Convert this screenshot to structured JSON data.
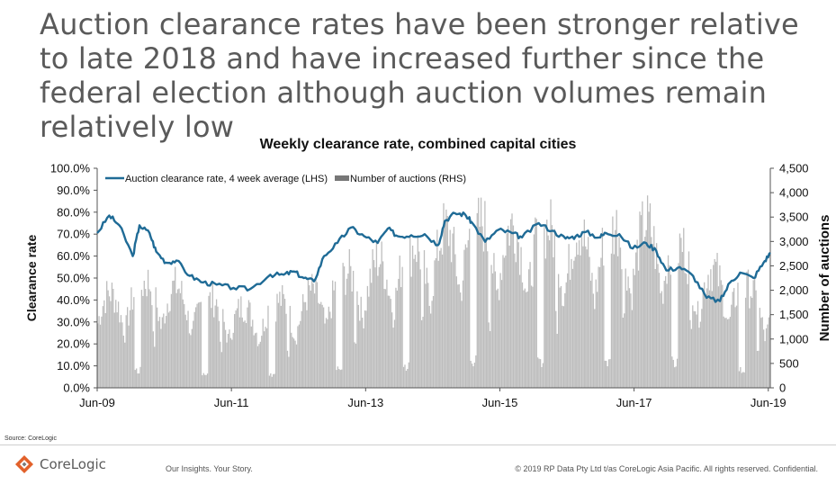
{
  "headline": "Auction clearance rates have been stronger relative to late 2018 and have increased further since the federal election although auction volumes remain relatively low",
  "chart_data": {
    "type": "line",
    "title": "Weekly clearance rate, combined capital cities",
    "ylabel": "Clearance rate",
    "y2label": "Number of auctions",
    "ylim": [
      0,
      100
    ],
    "y2lim": [
      0,
      4500
    ],
    "yticks": [
      "0.0%",
      "10.0%",
      "20.0%",
      "30.0%",
      "40.0%",
      "50.0%",
      "60.0%",
      "70.0%",
      "80.0%",
      "90.0%",
      "100.0%"
    ],
    "y2ticks": [
      "0",
      "500",
      "1,000",
      "1,500",
      "2,000",
      "2,500",
      "3,000",
      "3,500",
      "4,000",
      "4,500"
    ],
    "xticks": [
      "Jun-09",
      "Jun-11",
      "Jun-13",
      "Jun-15",
      "Jun-17",
      "Jun-19"
    ],
    "xrange_years": [
      2009.42,
      2019.45
    ],
    "legend_position": "top-left",
    "colors": {
      "line": "#1f6b96",
      "bars": "#bdbdbd"
    },
    "series": [
      {
        "name": "Auction clearance rate, 4 week average (LHS)",
        "kind": "line",
        "axis": "left",
        "x": [
          2009.42,
          2009.6,
          2009.75,
          2009.95,
          2010.05,
          2010.2,
          2010.3,
          2010.45,
          2010.6,
          2010.8,
          2011.0,
          2011.2,
          2011.45,
          2011.7,
          2012.0,
          2012.2,
          2012.35,
          2012.5,
          2012.65,
          2012.8,
          2013.0,
          2013.2,
          2013.4,
          2013.6,
          2013.75,
          2013.9,
          2014.1,
          2014.3,
          2014.5,
          2014.6,
          2014.75,
          2014.9,
          2015.0,
          2015.2,
          2015.4,
          2015.6,
          2015.75,
          2016.0,
          2016.2,
          2016.4,
          2016.55,
          2016.7,
          2016.9,
          2017.0,
          2017.2,
          2017.4,
          2017.6,
          2017.75,
          2017.9,
          2018.1,
          2018.3,
          2018.5,
          2018.7,
          2018.85,
          2019.0,
          2019.2,
          2019.35,
          2019.45
        ],
        "y": [
          70.5,
          78.5,
          74,
          60,
          74,
          70.5,
          62,
          57,
          58,
          51,
          48,
          47,
          45.5,
          45,
          51.5,
          51.5,
          53,
          50,
          48.5,
          60,
          66,
          73,
          69,
          66,
          72.5,
          69,
          69.5,
          70,
          65,
          76,
          79.5,
          79,
          75.5,
          66.5,
          72,
          70.5,
          68.5,
          75,
          71.5,
          68,
          69,
          71,
          68.5,
          70.5,
          70,
          63.5,
          66,
          62.5,
          53.5,
          55,
          51,
          41,
          39.5,
          48,
          52.5,
          50,
          57,
          61.5
        ]
      },
      {
        "name": "Number of auctions (RHS)",
        "kind": "bar",
        "axis": "right",
        "seasonal_profile": "weekly auction counts peak in autumn and spring, dip sharply over Christmas/New Year and around Easter; overall volume rises from ~2,000 in 2009-10 to ~3,500 peaks in 2015-17, falls to ~2,000 in late 2018 and ~1,500-2,500 in 2019"
      }
    ]
  },
  "source": "Source: CoreLogic",
  "logo_text": "CoreLogic",
  "tagline": "Our Insights. Your Story.",
  "copyright": "© 2019 RP Data Pty Ltd t/as CoreLogic Asia Pacific. All rights reserved. Confidential."
}
